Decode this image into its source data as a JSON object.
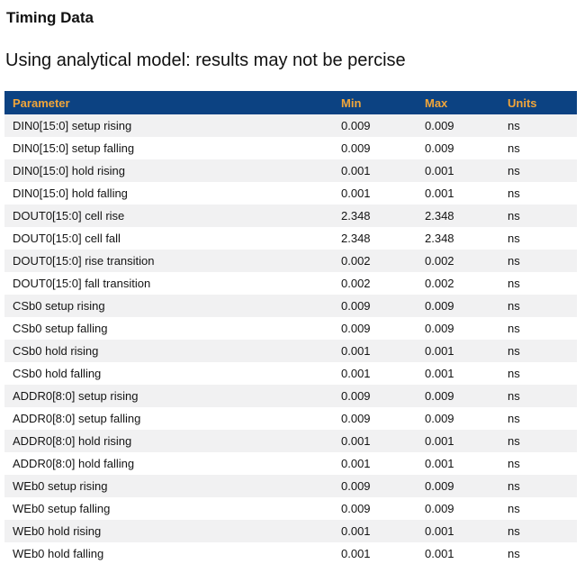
{
  "page": {
    "title": "Timing Data",
    "subtitle": "Using analytical model: results may not be percise"
  },
  "colors": {
    "header_background": "#0c4282",
    "header_text": "#f0a53a",
    "row_alt_background": "#f1f1f2",
    "row_background": "#ffffff",
    "body_text": "#141414"
  },
  "table": {
    "headers": [
      "Parameter",
      "Min",
      "Max",
      "Units"
    ],
    "rows": [
      {
        "parameter": "DIN0[15:0] setup rising",
        "min": "0.009",
        "max": "0.009",
        "units": "ns"
      },
      {
        "parameter": "DIN0[15:0] setup falling",
        "min": "0.009",
        "max": "0.009",
        "units": "ns"
      },
      {
        "parameter": "DIN0[15:0] hold rising",
        "min": "0.001",
        "max": "0.001",
        "units": "ns"
      },
      {
        "parameter": "DIN0[15:0] hold falling",
        "min": "0.001",
        "max": "0.001",
        "units": "ns"
      },
      {
        "parameter": "DOUT0[15:0] cell rise",
        "min": "2.348",
        "max": "2.348",
        "units": "ns"
      },
      {
        "parameter": "DOUT0[15:0] cell fall",
        "min": "2.348",
        "max": "2.348",
        "units": "ns"
      },
      {
        "parameter": "DOUT0[15:0] rise transition",
        "min": "0.002",
        "max": "0.002",
        "units": "ns"
      },
      {
        "parameter": "DOUT0[15:0] fall transition",
        "min": "0.002",
        "max": "0.002",
        "units": "ns"
      },
      {
        "parameter": "CSb0 setup rising",
        "min": "0.009",
        "max": "0.009",
        "units": "ns"
      },
      {
        "parameter": "CSb0 setup falling",
        "min": "0.009",
        "max": "0.009",
        "units": "ns"
      },
      {
        "parameter": "CSb0 hold rising",
        "min": "0.001",
        "max": "0.001",
        "units": "ns"
      },
      {
        "parameter": "CSb0 hold falling",
        "min": "0.001",
        "max": "0.001",
        "units": "ns"
      },
      {
        "parameter": "ADDR0[8:0] setup rising",
        "min": "0.009",
        "max": "0.009",
        "units": "ns"
      },
      {
        "parameter": "ADDR0[8:0] setup falling",
        "min": "0.009",
        "max": "0.009",
        "units": "ns"
      },
      {
        "parameter": "ADDR0[8:0] hold rising",
        "min": "0.001",
        "max": "0.001",
        "units": "ns"
      },
      {
        "parameter": "ADDR0[8:0] hold falling",
        "min": "0.001",
        "max": "0.001",
        "units": "ns"
      },
      {
        "parameter": "WEb0 setup rising",
        "min": "0.009",
        "max": "0.009",
        "units": "ns"
      },
      {
        "parameter": "WEb0 setup falling",
        "min": "0.009",
        "max": "0.009",
        "units": "ns"
      },
      {
        "parameter": "WEb0 hold rising",
        "min": "0.001",
        "max": "0.001",
        "units": "ns"
      },
      {
        "parameter": "WEb0 hold falling",
        "min": "0.001",
        "max": "0.001",
        "units": "ns"
      }
    ]
  }
}
